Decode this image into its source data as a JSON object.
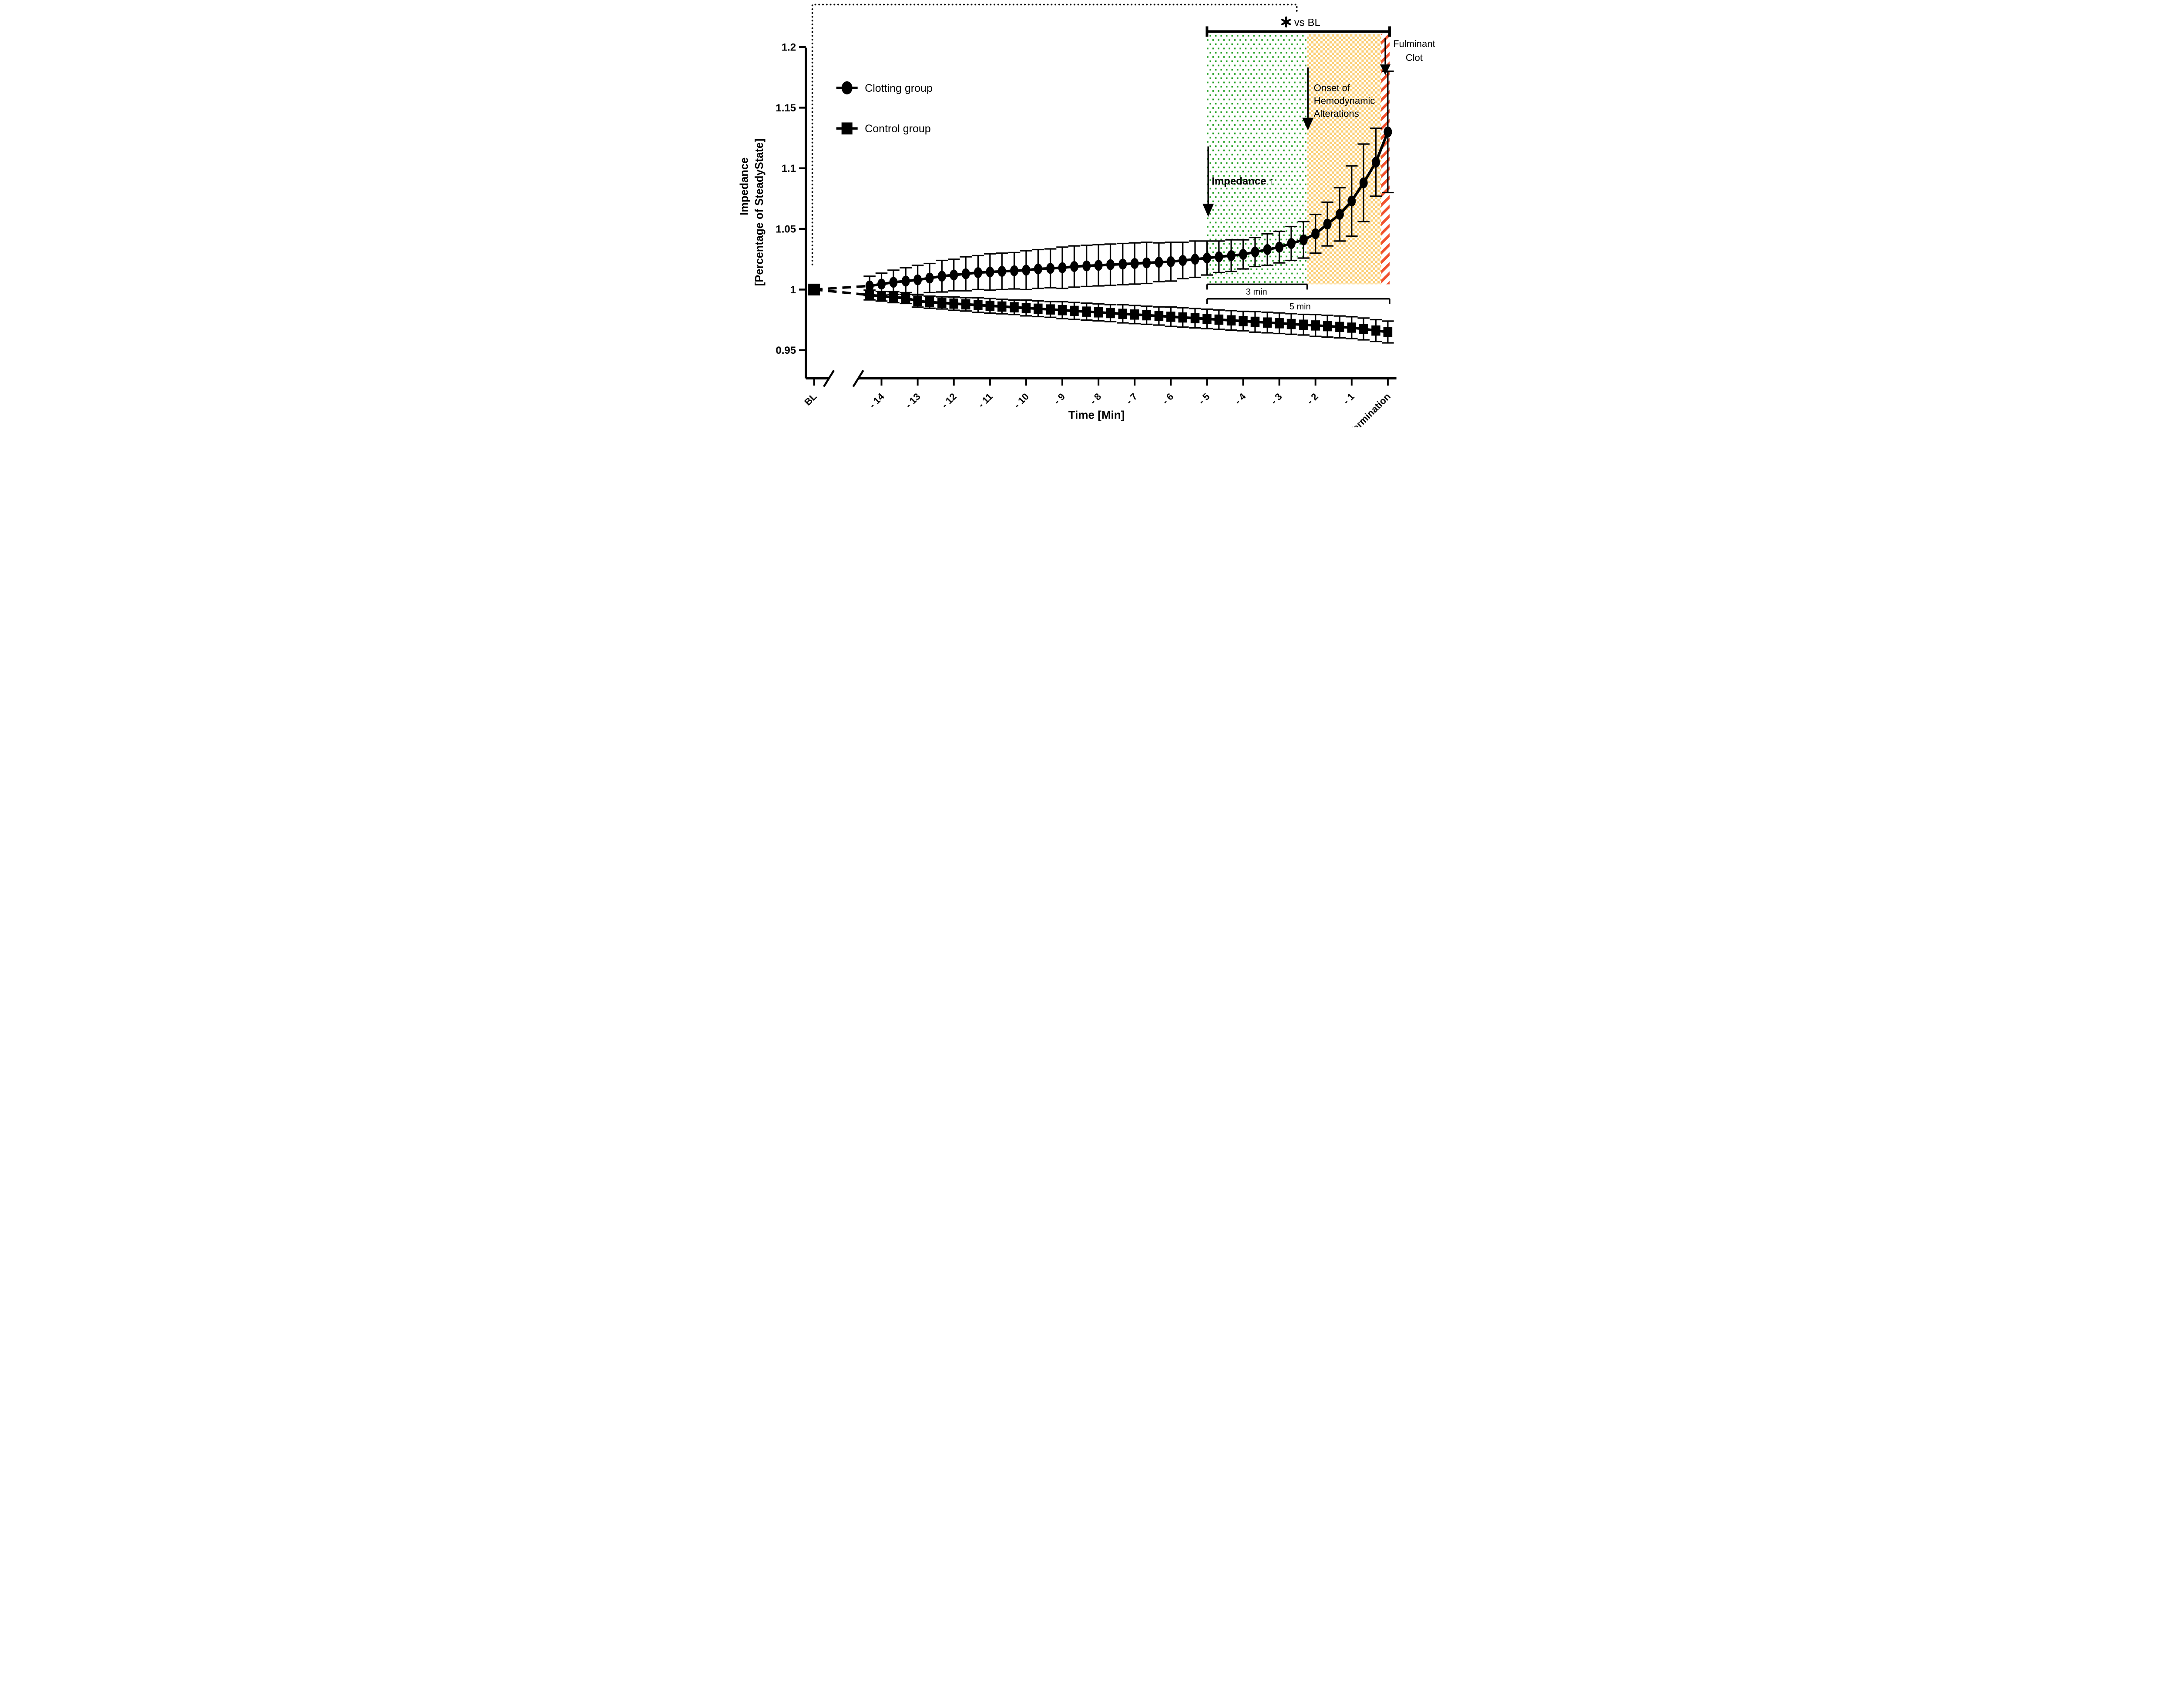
{
  "figure": {
    "background": "#ffffff"
  },
  "colors": {
    "series": "#000000",
    "green_region": "#23a123",
    "orange_region": "#fbce74",
    "red_region": "#f0512d"
  },
  "legend": {
    "items": [
      {
        "label": "Clotting group",
        "marker": "circle"
      },
      {
        "label": "Control group",
        "marker": "square"
      }
    ]
  },
  "annotations": {
    "vs_bl": {
      "asterisk": "*",
      "text": "vs BL"
    },
    "impedance_up": "Impedance ↑",
    "onset_lines": [
      "Onset of",
      "Hemodynamic",
      "Alterations"
    ],
    "fulminant_lines": [
      "Fulminant",
      "Clot"
    ],
    "three_min": "3 min",
    "five_min": "5 min"
  },
  "chart_data": {
    "type": "line",
    "title": "",
    "xlabel": "Time [Min]",
    "ylabel_line1": "Impedance",
    "ylabel_line2": "[Percentage  of SteadyState]",
    "ylim": [
      0.927,
      1.2
    ],
    "y_ticks": [
      {
        "value": 1.2,
        "label": "1.2"
      },
      {
        "value": 1.15,
        "label": "1.15"
      },
      {
        "value": 1.1,
        "label": "1.1"
      },
      {
        "value": 1.05,
        "label": "1.05"
      },
      {
        "value": 1.0,
        "label": "1"
      },
      {
        "value": 0.95,
        "label": "0.95"
      }
    ],
    "x_tick_minutes": [
      -14,
      -13,
      -12,
      -11,
      -10,
      -9,
      -8,
      -7,
      -6,
      -5,
      -4,
      -3,
      -2,
      -1
    ],
    "x_tick_labels": [
      "- 14",
      "- 13",
      "- 12",
      "- 11",
      "- 10",
      "- 9",
      "- 8",
      "- 7",
      "- 6",
      "- 5",
      "- 4",
      "- 3",
      "- 2",
      "- 1"
    ],
    "baseline_label": "BL",
    "termination_label": "Termination",
    "axis_break": true,
    "baseline": {
      "label": "BL",
      "value": 1.0
    },
    "x": [
      -14.33,
      -14,
      -13.67,
      -13.33,
      -13,
      -12.67,
      -12.33,
      -12,
      -11.67,
      -11.33,
      -11,
      -10.67,
      -10.33,
      -10,
      -9.67,
      -9.33,
      -9,
      -8.67,
      -8.33,
      -8,
      -7.67,
      -7.33,
      -7,
      -6.67,
      -6.33,
      -6,
      -5.67,
      -5.33,
      -5,
      -4.67,
      -4.33,
      -4,
      -3.67,
      -3.33,
      -3,
      -2.67,
      -2.33,
      -2,
      -1.67,
      -1.33,
      -1,
      -0.67,
      -0.33,
      0
    ],
    "series": [
      {
        "name": "Clotting group",
        "marker": "circle",
        "values": [
          1.003,
          1.0045,
          1.006,
          1.007,
          1.008,
          1.0095,
          1.011,
          1.012,
          1.013,
          1.014,
          1.0145,
          1.015,
          1.0155,
          1.016,
          1.017,
          1.0175,
          1.018,
          1.019,
          1.0195,
          1.02,
          1.0205,
          1.021,
          1.0215,
          1.022,
          1.0225,
          1.023,
          1.024,
          1.025,
          1.026,
          1.027,
          1.028,
          1.029,
          1.031,
          1.033,
          1.035,
          1.038,
          1.041,
          1.046,
          1.054,
          1.062,
          1.073,
          1.088,
          1.105,
          1.13
        ],
        "errors": [
          0.008,
          0.009,
          0.01,
          0.011,
          0.012,
          0.012,
          0.013,
          0.013,
          0.014,
          0.014,
          0.015,
          0.015,
          0.015,
          0.016,
          0.016,
          0.016,
          0.017,
          0.017,
          0.017,
          0.017,
          0.017,
          0.017,
          0.017,
          0.017,
          0.016,
          0.016,
          0.015,
          0.015,
          0.014,
          0.013,
          0.013,
          0.012,
          0.012,
          0.013,
          0.013,
          0.014,
          0.015,
          0.016,
          0.018,
          0.022,
          0.029,
          0.032,
          0.028,
          0.05
        ]
      },
      {
        "name": "Control group",
        "marker": "square",
        "values": [
          0.9955,
          0.9945,
          0.9937,
          0.993,
          0.9905,
          0.9896,
          0.989,
          0.9884,
          0.9878,
          0.9872,
          0.9866,
          0.986,
          0.9854,
          0.9848,
          0.9842,
          0.9836,
          0.983,
          0.9824,
          0.9818,
          0.9812,
          0.9806,
          0.98,
          0.9794,
          0.9788,
          0.9782,
          0.9776,
          0.977,
          0.9764,
          0.9758,
          0.9752,
          0.9746,
          0.974,
          0.9734,
          0.9728,
          0.9722,
          0.9716,
          0.971,
          0.9704,
          0.9698,
          0.9692,
          0.9686,
          0.9675,
          0.9662,
          0.965
        ],
        "errors": [
          0.004,
          0.004,
          0.0045,
          0.0045,
          0.005,
          0.005,
          0.005,
          0.0055,
          0.0055,
          0.006,
          0.006,
          0.006,
          0.006,
          0.0065,
          0.0065,
          0.0065,
          0.007,
          0.007,
          0.007,
          0.007,
          0.007,
          0.0075,
          0.0075,
          0.0075,
          0.0075,
          0.008,
          0.008,
          0.008,
          0.008,
          0.008,
          0.008,
          0.008,
          0.0085,
          0.0085,
          0.0085,
          0.0085,
          0.0085,
          0.009,
          0.009,
          0.009,
          0.009,
          0.009,
          0.009,
          0.009
        ]
      }
    ],
    "regions": [
      {
        "name": "impedance-increase-region",
        "pattern": "green-dots",
        "t_start": -5,
        "t_end": -2.23
      },
      {
        "name": "hemodynamic-region",
        "pattern": "orange-checker",
        "t_start": -2.23,
        "t_end": -0.18
      },
      {
        "name": "fulminant-clot-region",
        "pattern": "red-stripes",
        "t_start": -0.18,
        "t_end": 0.05
      }
    ],
    "brackets": [
      {
        "name": "vs-bl-bracket",
        "t_start": -5,
        "t_end": 0.05
      },
      {
        "name": "three-min-bracket",
        "label": "3 min",
        "t_start": -5,
        "t_end": -2.23
      },
      {
        "name": "five-min-bracket",
        "label": "5 min",
        "t_start": -5,
        "t_end": 0.05
      }
    ],
    "legend_position": "upper-left",
    "grid": false
  }
}
